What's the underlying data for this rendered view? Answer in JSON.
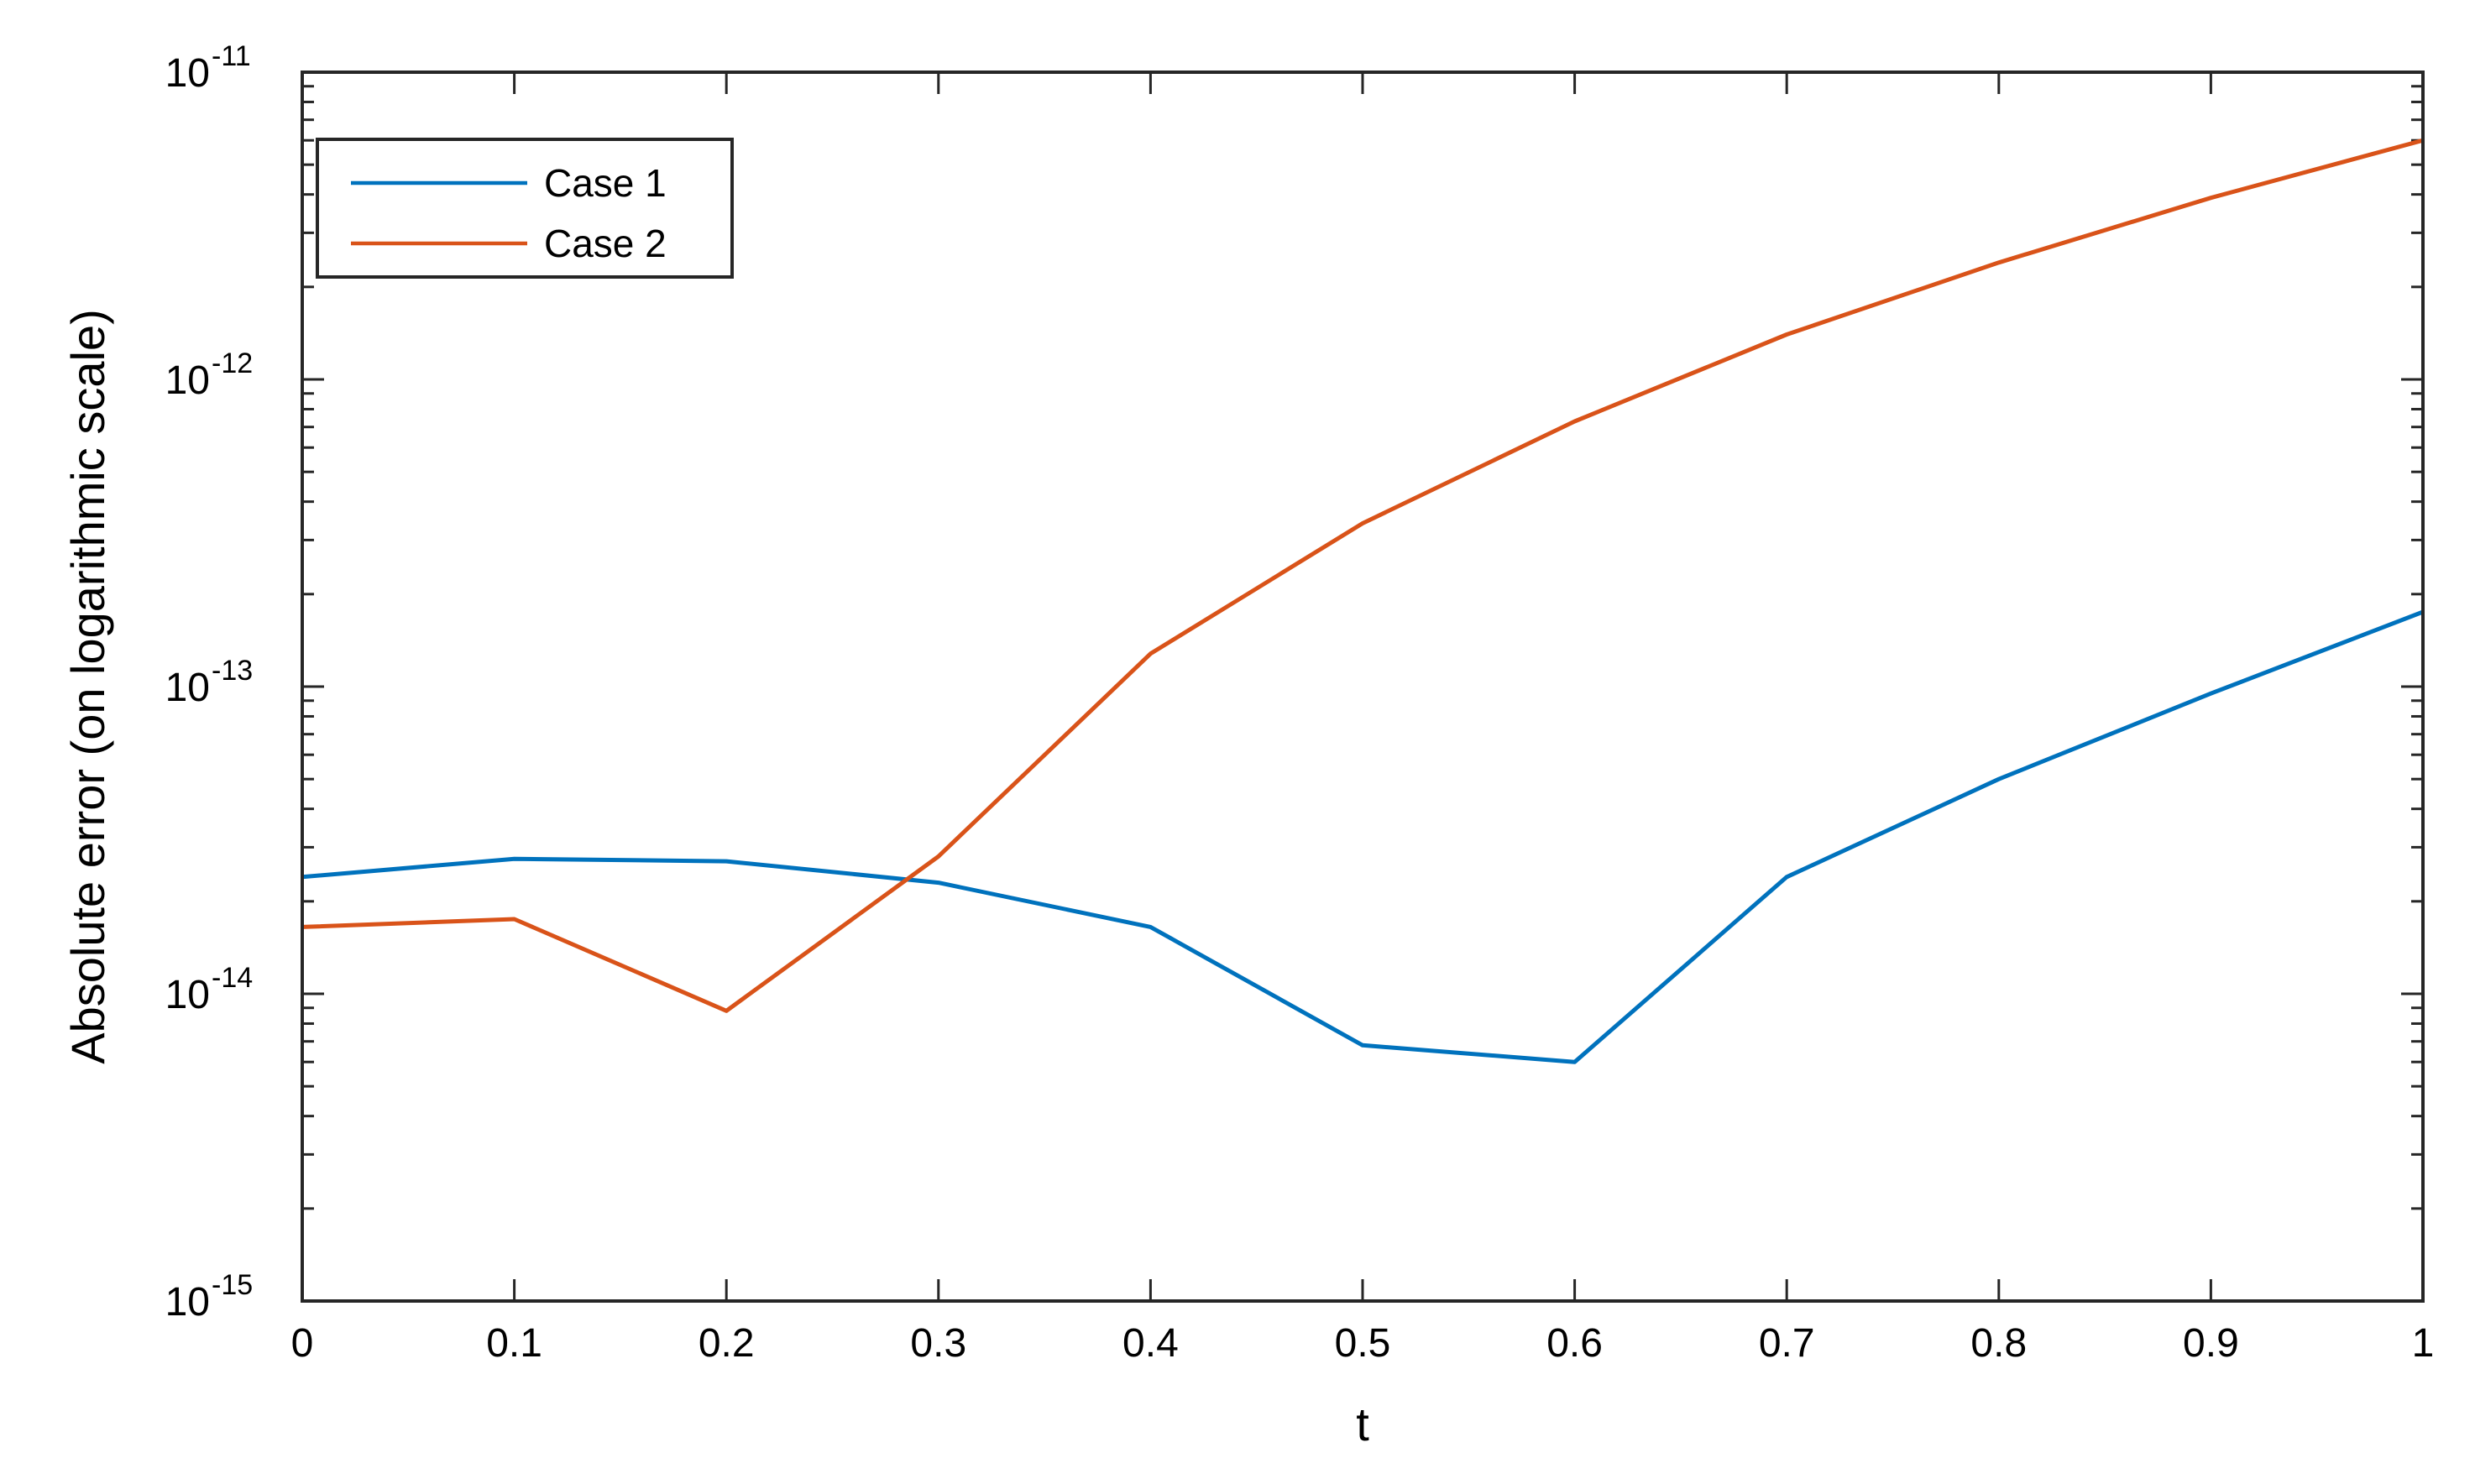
{
  "chart_data": {
    "type": "line",
    "title": "",
    "xlabel": "t",
    "ylabel": "Absolute error (on logarithmic scale)",
    "y_scale": "log",
    "xlim": [
      0,
      1
    ],
    "ylim": [
      1e-15,
      1e-11
    ],
    "x_ticks": [
      {
        "value": 0,
        "label": "0"
      },
      {
        "value": 0.1,
        "label": "0.1"
      },
      {
        "value": 0.2,
        "label": "0.2"
      },
      {
        "value": 0.3,
        "label": "0.3"
      },
      {
        "value": 0.4,
        "label": "0.4"
      },
      {
        "value": 0.5,
        "label": "0.5"
      },
      {
        "value": 0.6,
        "label": "0.6"
      },
      {
        "value": 0.7,
        "label": "0.7"
      },
      {
        "value": 0.8,
        "label": "0.8"
      },
      {
        "value": 0.9,
        "label": "0.9"
      },
      {
        "value": 1,
        "label": "1"
      }
    ],
    "y_ticks": [
      {
        "value": 1e-15,
        "base": "10",
        "exponent": "-15"
      },
      {
        "value": 1e-14,
        "base": "10",
        "exponent": "-14"
      },
      {
        "value": 1e-13,
        "base": "10",
        "exponent": "-13"
      },
      {
        "value": 1e-12,
        "base": "10",
        "exponent": "-12"
      },
      {
        "value": 1e-11,
        "base": "10",
        "exponent": "-11"
      }
    ],
    "grid": false,
    "box": true,
    "legend_position": "top-left",
    "x": [
      0,
      0.1,
      0.2,
      0.3,
      0.4,
      0.5,
      0.6,
      0.7,
      0.8,
      0.9,
      1.0
    ],
    "series": [
      {
        "name": "Case 1",
        "color": "#0072BD",
        "values": [
          2.4e-14,
          2.75e-14,
          2.7e-14,
          2.3e-14,
          1.65e-14,
          6.8e-15,
          6e-15,
          2.4e-14,
          5e-14,
          9.5e-14,
          1.75e-13
        ]
      },
      {
        "name": "Case 2",
        "color": "#D95319",
        "values": [
          1.65e-14,
          1.75e-14,
          8.8e-15,
          2.8e-14,
          1.28e-13,
          3.4e-13,
          7.3e-13,
          1.4e-12,
          2.4e-12,
          3.9e-12,
          6e-12
        ]
      }
    ]
  }
}
